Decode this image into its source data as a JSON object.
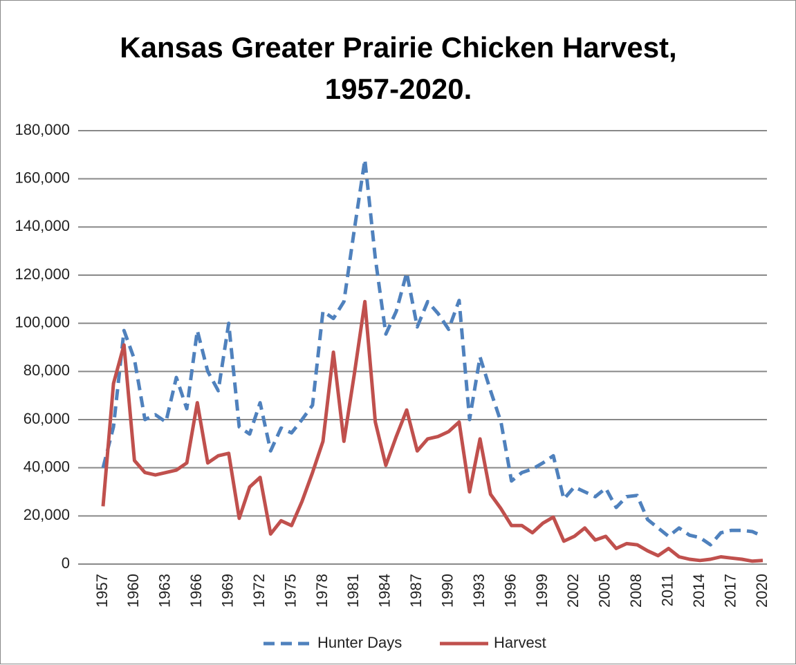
{
  "chart_data": {
    "type": "line",
    "title": "Kansas Greater Prairie Chicken Harvest, 1957-2020.",
    "x": [
      1957,
      1958,
      1959,
      1960,
      1961,
      1962,
      1963,
      1964,
      1965,
      1966,
      1967,
      1968,
      1969,
      1970,
      1971,
      1972,
      1973,
      1974,
      1975,
      1976,
      1977,
      1978,
      1979,
      1980,
      1981,
      1982,
      1983,
      1984,
      1985,
      1986,
      1987,
      1988,
      1989,
      1990,
      1991,
      1992,
      1993,
      1994,
      1995,
      1996,
      1997,
      1998,
      1999,
      2000,
      2001,
      2002,
      2003,
      2004,
      2005,
      2006,
      2007,
      2008,
      2009,
      2010,
      2011,
      2012,
      2013,
      2014,
      2015,
      2016,
      2017,
      2018,
      2019,
      2020
    ],
    "xlim": [
      1957,
      2020
    ],
    "xticks": [
      1957,
      1960,
      1963,
      1966,
      1969,
      1972,
      1975,
      1978,
      1981,
      1984,
      1987,
      1990,
      1993,
      1996,
      1999,
      2002,
      2005,
      2008,
      2011,
      2014,
      2017,
      2020
    ],
    "ylim": [
      0,
      180000
    ],
    "yticks": [
      0,
      {
        "value": 20000,
        "label": "20,000"
      },
      {
        "value": 40000,
        "label": "40,000"
      },
      {
        "value": 60000,
        "label": "60,000"
      },
      {
        "value": 80000,
        "label": "80,000"
      },
      {
        "value": 100000,
        "label": "100,000"
      },
      {
        "value": 120000,
        "label": "120,000"
      },
      {
        "value": 140000,
        "label": "140,000"
      },
      {
        "value": 160000,
        "label": "160,000"
      },
      {
        "value": 180000,
        "label": "180,000"
      }
    ],
    "grid": true,
    "legend": "bottom",
    "series": [
      {
        "name": "Hunter Days",
        "color": "#4f81bd",
        "dashed": true,
        "values": [
          40000,
          57000,
          97000,
          85000,
          60000,
          62000,
          59000,
          77500,
          64500,
          97000,
          80000,
          72000,
          100000,
          57000,
          54000,
          67000,
          47000,
          56500,
          54500,
          60000,
          66000,
          105000,
          102000,
          109000,
          139000,
          168000,
          127000,
          95500,
          105000,
          121000,
          98500,
          109000,
          104000,
          97500,
          109500,
          60000,
          86000,
          72000,
          59000,
          34500,
          38000,
          39500,
          42000,
          45000,
          27000,
          32000,
          30000,
          28000,
          31500,
          23500,
          28000,
          28500,
          18500,
          15000,
          11500,
          15000,
          12000,
          11000,
          8000,
          13000,
          14000,
          14000,
          13500,
          11500
        ]
      },
      {
        "name": "Harvest",
        "color": "#c0504d",
        "dashed": false,
        "values": [
          24000,
          75000,
          91000,
          43000,
          38000,
          37000,
          38000,
          39000,
          42000,
          67000,
          42000,
          45000,
          46000,
          19000,
          32000,
          36000,
          12500,
          18000,
          16000,
          26000,
          38000,
          51000,
          88000,
          51000,
          79000,
          109000,
          59000,
          41000,
          53000,
          64000,
          47000,
          52000,
          53000,
          55000,
          59000,
          30000,
          52000,
          29000,
          23000,
          16000,
          16000,
          13000,
          17000,
          19500,
          9500,
          11500,
          15000,
          10000,
          11500,
          6500,
          8500,
          8000,
          5500,
          3500,
          6500,
          3000,
          2000,
          1500,
          2000,
          3000,
          2500,
          2000,
          1200,
          1500
        ]
      }
    ]
  }
}
